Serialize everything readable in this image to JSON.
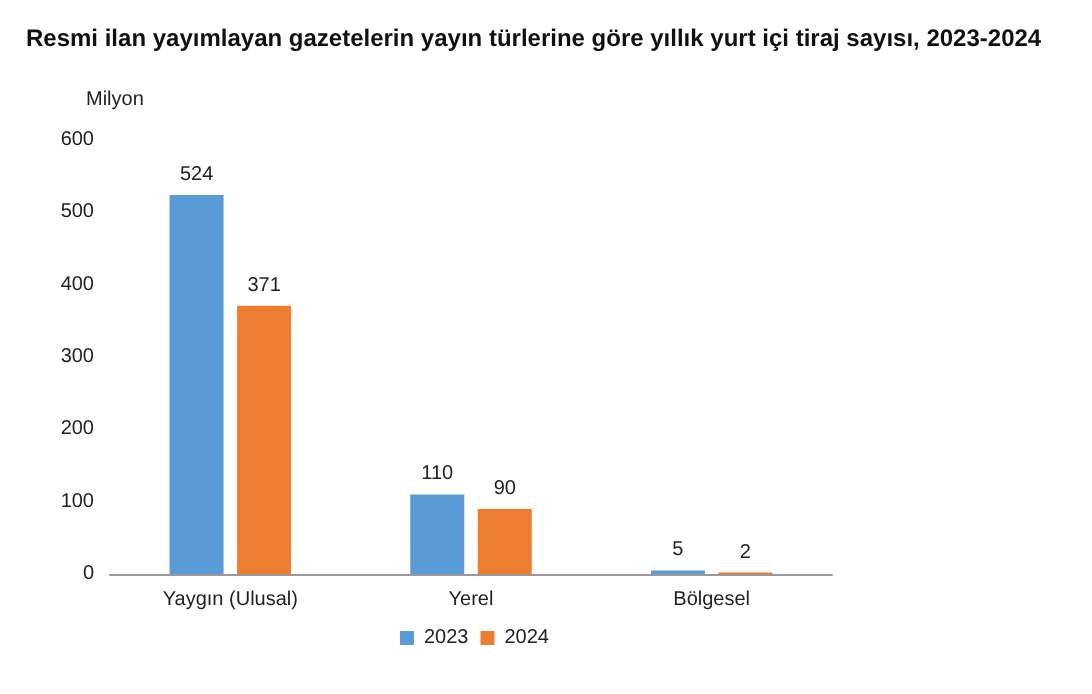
{
  "chart_data": {
    "type": "bar",
    "title": "Resmi ilan yayımlayan gazetelerin yayın türlerine göre yıllık yurt içi tiraj sayısı, 2023-2024",
    "ylabel": "Milyon",
    "categories": [
      "Yaygın (Ulusal)",
      "Yerel",
      "Bölgesel"
    ],
    "series": [
      {
        "name": "2023",
        "color": "#5b9bd5",
        "values": [
          524,
          110,
          5
        ]
      },
      {
        "name": "2024",
        "color": "#ed7d31",
        "values": [
          371,
          90,
          2
        ]
      }
    ],
    "ylim": [
      0,
      600
    ],
    "yticks": [
      0,
      100,
      200,
      300,
      400,
      500,
      600
    ],
    "grid": false,
    "legend": "bottom",
    "data_labels": true
  }
}
